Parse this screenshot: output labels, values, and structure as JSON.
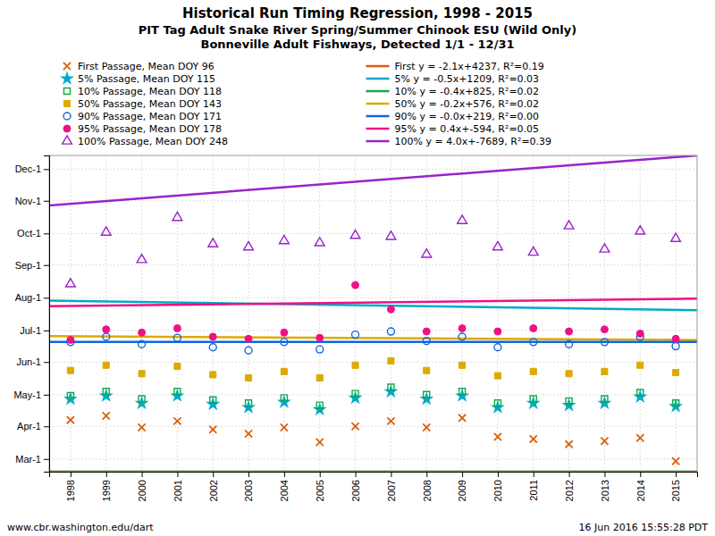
{
  "chart_data": {
    "type": "scatter",
    "title": "Historical Run Timing Regression, 1998 - 2015",
    "subtitle": [
      "PIT Tag Adult Snake River Spring/Summer Chinook ESU (Wild Only)",
      "Bonneville Adult Fishways, Detected 1/1 - 12/31"
    ],
    "annotations": [
      "www.cbr.washington.edu/dart",
      "16 Jun 2016  15:55:28 PDT"
    ],
    "x": [
      1998,
      1999,
      2000,
      2001,
      2002,
      2003,
      2004,
      2005,
      2006,
      2007,
      2008,
      2009,
      2010,
      2011,
      2012,
      2013,
      2014,
      2015
    ],
    "xlim": [
      1997.4,
      2015.6
    ],
    "xticks": [
      1998,
      1999,
      2000,
      2001,
      2002,
      2003,
      2004,
      2005,
      2006,
      2007,
      2008,
      2009,
      2010,
      2011,
      2012,
      2013,
      2014,
      2015
    ],
    "ylim": [
      48,
      348
    ],
    "yticks": [
      {
        "value": 60,
        "label": "Mar-1"
      },
      {
        "value": 91,
        "label": "Apr-1"
      },
      {
        "value": 121,
        "label": "May-1"
      },
      {
        "value": 152,
        "label": "Jun-1"
      },
      {
        "value": 182,
        "label": "Jul-1"
      },
      {
        "value": 213,
        "label": "Aug-1"
      },
      {
        "value": 244,
        "label": "Sep-1"
      },
      {
        "value": 274,
        "label": "Oct-1"
      },
      {
        "value": 305,
        "label": "Nov-1"
      },
      {
        "value": 335,
        "label": "Dec-1"
      }
    ],
    "grid": true,
    "legend": "top",
    "series": [
      {
        "name": "First Passage, Mean DOY 96",
        "type": "scatter",
        "color": "#d96010",
        "marker": "x",
        "values": [
          97,
          101,
          90,
          96,
          88,
          84,
          90,
          76,
          91,
          96,
          90,
          99,
          81,
          79,
          74,
          77,
          80,
          58
        ]
      },
      {
        "name": "First y = -2.1x+4237, R²=0.19",
        "type": "line",
        "color": "#d96010",
        "x": [
          1997.4,
          2015.6
        ],
        "values": [
          48,
          48
        ]
      },
      {
        "name": "5% Passage, Mean DOY 115",
        "type": "scatter",
        "color": "#00aacc",
        "marker": "star",
        "values": [
          117,
          120,
          113,
          120,
          112,
          109,
          114,
          107,
          118,
          124,
          117,
          120,
          109,
          113,
          111,
          113,
          119,
          110
        ]
      },
      {
        "name": "5% y = -0.5x+1209, R²=0.03",
        "type": "line",
        "color": "#00aacc",
        "x": [
          1997.4,
          2015.6
        ],
        "values": [
          210.3,
          201.2
        ]
      },
      {
        "name": "10% Passage, Mean DOY 118",
        "type": "scatter",
        "color": "#11aa44",
        "marker": "square-open",
        "values": [
          120,
          124,
          117,
          124,
          116,
          113,
          118,
          111,
          122,
          128,
          121,
          124,
          113,
          117,
          115,
          117,
          123,
          113
        ]
      },
      {
        "name": "10% y = -0.4x+825, R²=0.02",
        "type": "line",
        "color": "#11aa44",
        "x": [
          1997.4,
          2015.6
        ],
        "values": [
          48,
          48
        ]
      },
      {
        "name": "50% Passage, Mean DOY 143",
        "type": "scatter",
        "color": "#ddaa00",
        "marker": "square",
        "values": [
          144,
          149,
          141,
          148,
          140,
          137,
          143,
          137,
          149,
          153,
          144,
          149,
          139,
          143,
          141,
          143,
          149,
          142
        ]
      },
      {
        "name": "50% y = -0.2x+576, R²=0.02",
        "type": "line",
        "color": "#ddaa00",
        "x": [
          1997.4,
          2015.6
        ],
        "values": [
          176.52,
          172.88
        ]
      },
      {
        "name": "90% Passage, Mean DOY 171",
        "type": "scatter",
        "color": "#1166dd",
        "marker": "circle-open",
        "values": [
          171,
          176,
          169,
          175,
          166,
          163,
          171,
          164,
          178,
          181,
          172,
          176,
          166,
          171,
          169,
          171,
          176,
          167
        ]
      },
      {
        "name": "90% y = -0.0x+219, R²=0.00",
        "type": "line",
        "color": "#1166dd",
        "x": [
          1997.4,
          2015.6
        ],
        "values": [
          171,
          171
        ]
      },
      {
        "name": "95% Passage, Mean DOY 178",
        "type": "scatter",
        "color": "#ee1188",
        "marker": "circle",
        "values": [
          173,
          183,
          180,
          184,
          176,
          174,
          180,
          175,
          225,
          202,
          181,
          184,
          181,
          184,
          181,
          183,
          179,
          174
        ]
      },
      {
        "name": "95% y = 0.4x+-594, R²=0.05",
        "type": "line",
        "color": "#ee1188",
        "x": [
          1997.4,
          2015.6
        ],
        "values": [
          204.96,
          212.24
        ]
      },
      {
        "name": "100% Passage, Mean DOY 248",
        "type": "scatter",
        "color": "#9922cc",
        "marker": "triangle-open",
        "values": [
          226,
          275,
          249,
          289,
          264,
          261,
          267,
          265,
          272,
          271,
          254,
          286,
          261,
          256,
          281,
          259,
          276,
          269
        ]
      },
      {
        "name": "100% y = 4.0x+-7689, R²=0.39",
        "type": "line",
        "color": "#9922cc",
        "x": [
          1997.4,
          2015.6
        ],
        "values": [
          300.6,
          348
        ]
      }
    ]
  }
}
